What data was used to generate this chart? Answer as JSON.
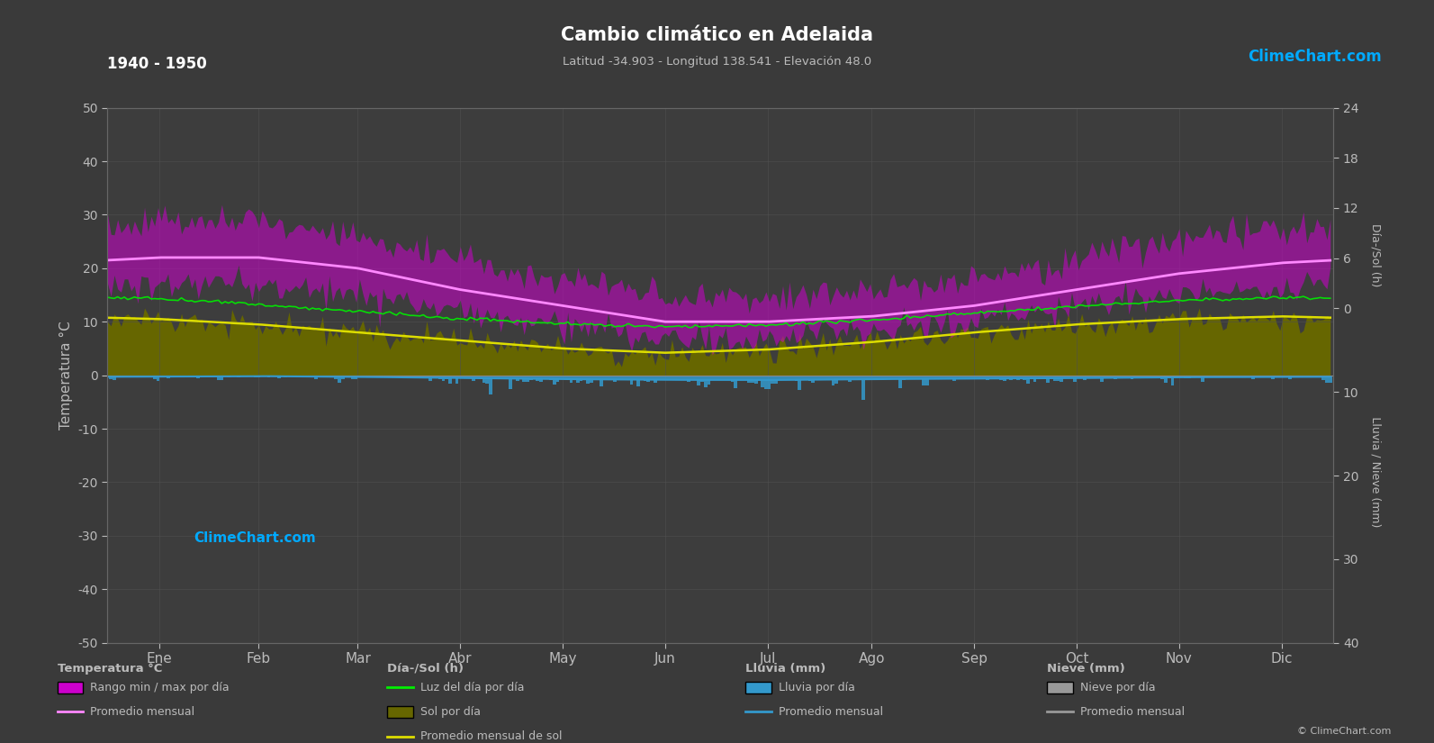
{
  "title": "Cambio climático en Adelaida",
  "subtitle": "Latitud -34.903 - Longitud 138.541 - Elevación 48.0",
  "year_range": "1940 - 1950",
  "bg_color": "#3a3a3a",
  "plot_bg_color": "#404040",
  "grid_color": "#505050",
  "text_color": "#bbbbbb",
  "months": [
    "Ene",
    "Feb",
    "Mar",
    "Abr",
    "May",
    "Jun",
    "Jul",
    "Ago",
    "Sep",
    "Oct",
    "Nov",
    "Dic"
  ],
  "month_starts": [
    0,
    31,
    59,
    90,
    120,
    151,
    181,
    212,
    243,
    273,
    304,
    334,
    365
  ],
  "temp_min_monthly": [
    17,
    17,
    15,
    12,
    9,
    7,
    7,
    8,
    10,
    13,
    15,
    16
  ],
  "temp_max_monthly": [
    29,
    29,
    26,
    22,
    18,
    15,
    14,
    16,
    18,
    22,
    25,
    27
  ],
  "temp_avg_monthly": [
    22,
    22,
    20,
    16,
    13,
    10,
    10,
    11,
    13,
    16,
    19,
    21
  ],
  "daylight_monthly": [
    14.3,
    13.2,
    11.9,
    10.6,
    9.6,
    9.1,
    9.3,
    10.3,
    11.6,
    12.9,
    14.0,
    14.5
  ],
  "sun_monthly": [
    10.5,
    9.5,
    8.0,
    6.5,
    5.0,
    4.2,
    4.8,
    6.2,
    8.0,
    9.5,
    10.5,
    11.0
  ],
  "rain_monthly_mm": [
    19,
    13,
    23,
    38,
    55,
    65,
    68,
    55,
    48,
    40,
    28,
    25
  ],
  "rain_scale": 0.4,
  "temp_ylim": [
    -50,
    50
  ],
  "right_ylim": [
    -40,
    24
  ],
  "temp_yticks": [
    -50,
    -40,
    -30,
    -20,
    -10,
    0,
    10,
    20,
    30,
    40,
    50
  ],
  "right_yticks_pos": [
    0,
    6,
    12,
    18,
    24,
    -10,
    -20,
    -30,
    -40
  ],
  "right_ytick_labels": [
    "0",
    "6",
    "12",
    "18",
    "24",
    "10",
    "20",
    "30",
    "40"
  ],
  "colors": {
    "temp_range": "#cc00cc",
    "temp_avg_line": "#ff88ff",
    "daylight_line": "#00ee00",
    "sun_fill_top": "#cccc00",
    "sun_fill_bot": "#666600",
    "sun_avg_line": "#dddd00",
    "rain_bar": "#3399cc",
    "rain_avg_line": "#3399cc",
    "logo_text": "#00aaff",
    "zero_line": "#888888"
  },
  "legend": {
    "temp_section": "Temperatura °C",
    "temp_range_label": "Rango min / max por día",
    "temp_avg_label": "Promedio mensual",
    "sun_section": "Día-/Sol (h)",
    "daylight_label": "Luz del día por día",
    "sun_label": "Sol por día",
    "sun_avg_label": "Promedio mensual de sol",
    "rain_section": "Lluvia (mm)",
    "rain_bar_label": "Lluvia por día",
    "rain_avg_label": "Promedio mensual",
    "snow_section": "Nieve (mm)",
    "snow_bar_label": "Nieve por día",
    "snow_avg_label": "Promedio mensual"
  }
}
